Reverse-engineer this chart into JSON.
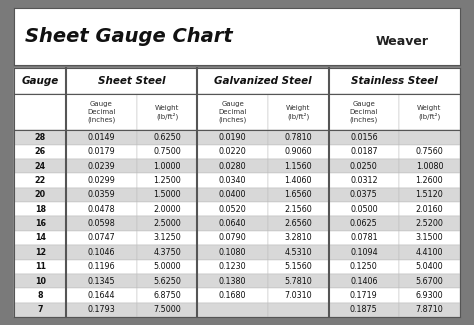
{
  "title": "Sheet Gauge Chart",
  "gauge_col": [
    28,
    26,
    24,
    22,
    20,
    18,
    16,
    14,
    12,
    11,
    10,
    8,
    7
  ],
  "sheet_steel": {
    "header": "Sheet Steel",
    "decimal": [
      "0.0149",
      "0.0179",
      "0.0239",
      "0.0299",
      "0.0359",
      "0.0478",
      "0.0598",
      "0.0747",
      "0.1046",
      "0.1196",
      "0.1345",
      "0.1644",
      "0.1793"
    ],
    "weight": [
      "0.6250",
      "0.7500",
      "1.0000",
      "1.2500",
      "1.5000",
      "2.0000",
      "2.5000",
      "3.1250",
      "4.3750",
      "5.0000",
      "5.6250",
      "6.8750",
      "7.5000"
    ]
  },
  "galvanized_steel": {
    "header": "Galvanized Steel",
    "decimal": [
      "0.0190",
      "0.0220",
      "0.0280",
      "0.0340",
      "0.0400",
      "0.0520",
      "0.0640",
      "0.0790",
      "0.1080",
      "0.1230",
      "0.1380",
      "0.1680",
      ""
    ],
    "weight": [
      "0.7810",
      "0.9060",
      "1.1560",
      "1.4060",
      "1.6560",
      "2.1560",
      "2.6560",
      "3.2810",
      "4.5310",
      "5.1560",
      "5.7810",
      "7.0310",
      ""
    ]
  },
  "stainless_steel": {
    "header": "Stainless Steel",
    "decimal": [
      "0.0156",
      "0.0187",
      "0.0250",
      "0.0312",
      "0.0375",
      "0.0500",
      "0.0625",
      "0.0781",
      "0.1094",
      "0.1250",
      "0.1406",
      "0.1719",
      "0.1875"
    ],
    "weight": [
      "",
      "0.7560",
      "1.0080",
      "1.2600",
      "1.5120",
      "2.0160",
      "2.5200",
      "3.1500",
      "4.4100",
      "5.0400",
      "5.6700",
      "6.9300",
      "7.8710"
    ]
  },
  "bg_outer": "#7a7a7a",
  "bg_white": "#ffffff",
  "bg_data_shaded": "#d8d8d8",
  "text_title": "#111111",
  "text_header_section": "#111111",
  "text_subheader": "#333333",
  "text_data": "#111111",
  "border_color": "#555555",
  "divider_thick": "#555555",
  "divider_thin": "#aaaaaa",
  "subhdr_label_decimal": "Gauge\nDecimal\n(inches)",
  "subhdr_label_weight": "Weight\n(lb/ft²)"
}
